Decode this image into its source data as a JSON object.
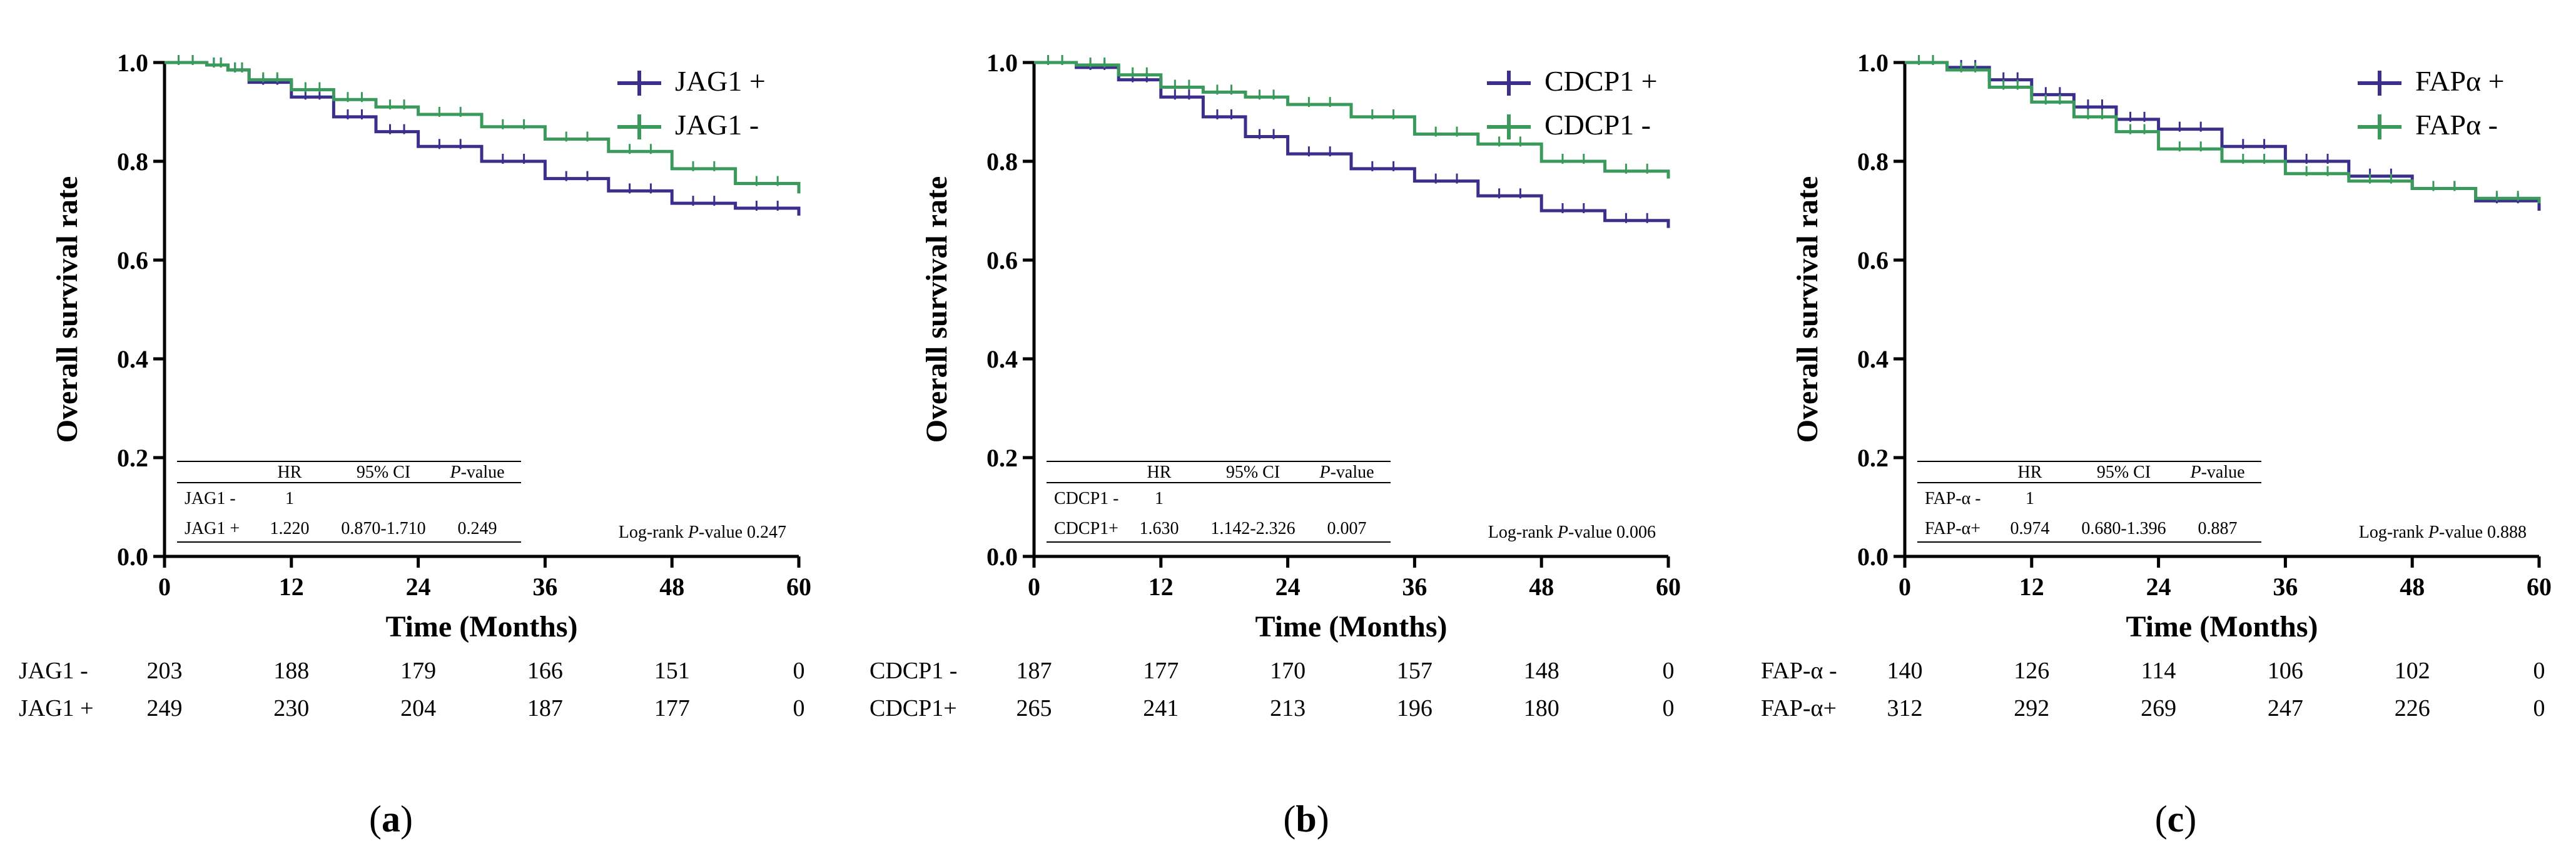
{
  "colors": {
    "positive": "#3b2f8c",
    "negative": "#3a9a5b",
    "axis": "#000000"
  },
  "panels": [
    {
      "label_open": "(",
      "label_letter": "a",
      "label_close": ")",
      "legend": [
        "JAG1 +",
        "JAG1 -"
      ],
      "table": {
        "headers": [
          "",
          "HR",
          "95% CI",
          "P-value"
        ],
        "rows": [
          [
            "JAG1 -",
            "1",
            "",
            ""
          ],
          [
            "JAG1 +",
            "1.220",
            "0.870-1.710",
            "0.249"
          ]
        ]
      },
      "logrank": "Log-rank P-value 0.247",
      "risk": {
        "rows": [
          {
            "label": "JAG1 -",
            "values": [
              "203",
              "188",
              "179",
              "166",
              "151",
              "0"
            ]
          },
          {
            "label": "JAG1 +",
            "values": [
              "249",
              "230",
              "204",
              "187",
              "177",
              "0"
            ]
          }
        ]
      }
    },
    {
      "label_open": "(",
      "label_letter": "b",
      "label_close": ")",
      "legend": [
        "CDCP1 +",
        "CDCP1 -"
      ],
      "table": {
        "headers": [
          "",
          "HR",
          "95% CI",
          "P-value"
        ],
        "rows": [
          [
            "CDCP1 -",
            "1",
            "",
            ""
          ],
          [
            "CDCP1+",
            "1.630",
            "1.142-2.326",
            "0.007"
          ]
        ]
      },
      "logrank": "Log-rank P-value 0.006",
      "risk": {
        "rows": [
          {
            "label": "CDCP1 -",
            "values": [
              "187",
              "177",
              "170",
              "157",
              "148",
              "0"
            ]
          },
          {
            "label": "CDCP1+",
            "values": [
              "265",
              "241",
              "213",
              "196",
              "180",
              "0"
            ]
          }
        ]
      }
    },
    {
      "label_open": "(",
      "label_letter": "c",
      "label_close": ")",
      "legend": [
        "FAPα +",
        "FAPα -"
      ],
      "table": {
        "headers": [
          "",
          "HR",
          "95% CI",
          "P-value"
        ],
        "rows": [
          [
            "FAP-α -",
            "1",
            "",
            ""
          ],
          [
            "FAP-α+",
            "0.974",
            "0.680-1.396",
            "0.887"
          ]
        ]
      },
      "logrank": "Log-rank P-value 0.888",
      "risk": {
        "rows": [
          {
            "label": "FAP-α -",
            "values": [
              "140",
              "126",
              "114",
              "106",
              "102",
              "0"
            ]
          },
          {
            "label": "FAP-α+",
            "values": [
              "312",
              "292",
              "269",
              "247",
              "226",
              "0"
            ]
          }
        ]
      }
    }
  ],
  "chart_data": [
    {
      "type": "line",
      "title": "",
      "xlabel": "Time (Months)",
      "ylabel": "Overall survival rate",
      "xlim": [
        0,
        60
      ],
      "ylim": [
        0.0,
        1.0
      ],
      "xticks": [
        "0",
        "12",
        "24",
        "36",
        "48",
        "60"
      ],
      "yticks": [
        "0.0",
        "0.2",
        "0.4",
        "0.6",
        "0.8",
        "1.0"
      ],
      "series": [
        {
          "name": "JAG1 +",
          "x": [
            0,
            4,
            6,
            8,
            12,
            16,
            20,
            24,
            30,
            36,
            42,
            48,
            54,
            60
          ],
          "y": [
            1.0,
            0.995,
            0.985,
            0.96,
            0.93,
            0.89,
            0.86,
            0.83,
            0.8,
            0.765,
            0.74,
            0.715,
            0.705,
            0.69
          ]
        },
        {
          "name": "JAG1 -",
          "x": [
            0,
            4,
            6,
            8,
            12,
            16,
            20,
            24,
            30,
            36,
            42,
            48,
            54,
            60
          ],
          "y": [
            1.0,
            0.995,
            0.985,
            0.965,
            0.945,
            0.925,
            0.91,
            0.895,
            0.87,
            0.845,
            0.82,
            0.785,
            0.755,
            0.735
          ]
        }
      ]
    },
    {
      "type": "line",
      "title": "",
      "xlabel": "Time (Months)",
      "ylabel": "Overall survival rate",
      "xlim": [
        0,
        60
      ],
      "ylim": [
        0.0,
        1.0
      ],
      "xticks": [
        "0",
        "12",
        "24",
        "36",
        "48",
        "60"
      ],
      "yticks": [
        "0.0",
        "0.2",
        "0.4",
        "0.6",
        "0.8",
        "1.0"
      ],
      "series": [
        {
          "name": "CDCP1 +",
          "x": [
            0,
            4,
            8,
            12,
            16,
            20,
            24,
            30,
            36,
            42,
            48,
            54,
            60
          ],
          "y": [
            1.0,
            0.99,
            0.965,
            0.93,
            0.89,
            0.85,
            0.815,
            0.785,
            0.76,
            0.73,
            0.7,
            0.68,
            0.665
          ]
        },
        {
          "name": "CDCP1 -",
          "x": [
            0,
            4,
            8,
            12,
            16,
            20,
            24,
            30,
            36,
            42,
            48,
            54,
            60
          ],
          "y": [
            1.0,
            0.995,
            0.975,
            0.95,
            0.94,
            0.93,
            0.915,
            0.89,
            0.855,
            0.835,
            0.8,
            0.78,
            0.765
          ]
        }
      ]
    },
    {
      "type": "line",
      "title": "",
      "xlabel": "Time (Months)",
      "ylabel": "Overall survival rate",
      "xlim": [
        0,
        60
      ],
      "ylim": [
        0.0,
        1.0
      ],
      "xticks": [
        "0",
        "12",
        "24",
        "36",
        "48",
        "60"
      ],
      "yticks": [
        "0.0",
        "0.2",
        "0.4",
        "0.6",
        "0.8",
        "1.0"
      ],
      "series": [
        {
          "name": "FAPα +",
          "x": [
            0,
            4,
            8,
            12,
            16,
            20,
            24,
            30,
            36,
            42,
            48,
            54,
            60
          ],
          "y": [
            1.0,
            0.99,
            0.965,
            0.935,
            0.91,
            0.885,
            0.865,
            0.83,
            0.8,
            0.77,
            0.745,
            0.72,
            0.7
          ]
        },
        {
          "name": "FAPα -",
          "x": [
            0,
            4,
            8,
            12,
            16,
            20,
            24,
            30,
            36,
            42,
            48,
            54,
            60
          ],
          "y": [
            1.0,
            0.985,
            0.95,
            0.92,
            0.89,
            0.86,
            0.825,
            0.8,
            0.775,
            0.76,
            0.745,
            0.725,
            0.715
          ]
        }
      ]
    }
  ]
}
